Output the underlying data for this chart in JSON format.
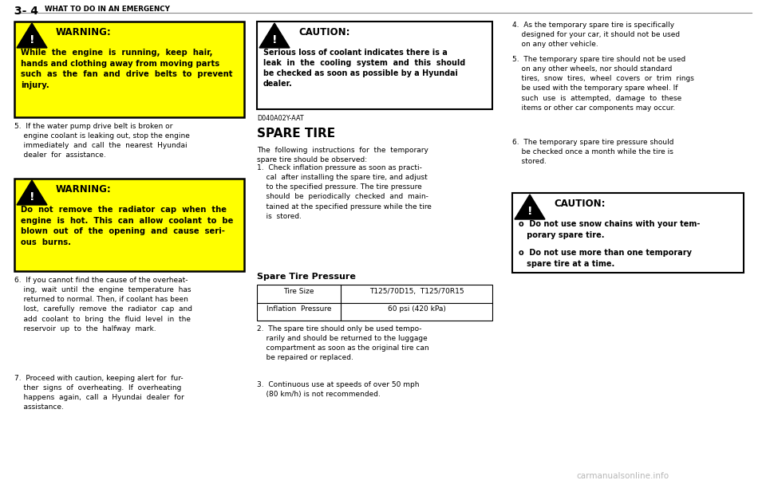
{
  "bg_color": "#ffffff",
  "warning_bg": "#ffff00",
  "page_header_bold": "3- 4",
  "page_header_normal": "WHAT TO DO IN AN EMERGENCY",
  "col1_w1_title": "WARNING:",
  "col1_w1_body": "While  the  engine  is  running,  keep  hair,\nhands and clothing away from moving parts\nsuch  as  the  fan  and  drive  belts  to  prevent\ninjury.",
  "col1_item5": "5.  If the water pump drive belt is broken or\n    engine coolant is leaking out, stop the engine\n    immediately  and  call  the  nearest  Hyundai\n    dealer  for  assistance.",
  "col1_w2_title": "WARNING:",
  "col1_w2_body": "Do  not  remove  the  radiator  cap  when  the\nengine  is  hot.  This  can  allow  coolant  to  be\nblown  out  of  the  opening  and  cause  seri-\nous  burns.",
  "col1_item6": "6.  If you cannot find the cause of the overheat-\n    ing,  wait  until  the  engine  temperature  has\n    returned to normal. Then, if coolant has been\n    lost,  carefully  remove  the  radiator  cap  and\n    add  coolant  to  bring  the  fluid  level  in  the\n    reservoir  up  to  the  halfway  mark.",
  "col1_item7": "7.  Proceed with caution, keeping alert for  fur-\n    ther  signs  of  overheating.  If  overheating\n    happens  again,  call  a  Hyundai  dealer  for\n    assistance.",
  "col2_caut_title": "CAUTION:",
  "col2_caut_body": "Serious loss of coolant indicates there is a\nleak  in  the  cooling  system  and  this  should\nbe checked as soon as possible by a Hyundai\ndealer.",
  "col2_label": "D040A02Y-AAT",
  "col2_section": "SPARE TIRE",
  "col2_intro": "The  following  instructions  for  the  temporary\nspare tire should be observed:",
  "col2_item1": "1.  Check inflation pressure as soon as practi-\n    cal  after installing the spare tire, and adjust\n    to the specified pressure. The tire pressure\n    should  be  periodically  checked  and  main-\n    tained at the specified pressure while the tire\n    is  stored.",
  "col2_spare_title": "Spare Tire Pressure",
  "tbl_h1": "Tire Size",
  "tbl_h2": "T125/70D15,  T125/70R15",
  "tbl_r1": "Inflation  Pressure",
  "tbl_r2": "60 psi (420 kPa)",
  "col2_item2": "2.  The spare tire should only be used tempo-\n    rarily and should be returned to the luggage\n    compartment as soon as the original tire can\n    be repaired or replaced.",
  "col2_item3": "3.  Continuous use at speeds of over 50 mph\n    (80 km/h) is not recommended.",
  "col3_item4": "4.  As the temporary spare tire is specifically\n    designed for your car, it should not be used\n    on any other vehicle.",
  "col3_item5": "5.  The temporary spare tire should not be used\n    on any other wheels, nor should standard\n    tires,  snow  tires,  wheel  covers  or  trim  rings\n    be used with the temporary spare wheel. If\n    such  use  is  attempted,  damage  to  these\n    items or other car components may occur.",
  "col3_item6": "6.  The temporary spare tire pressure should\n    be checked once a month while the tire is\n    stored.",
  "col3_caut_title": "CAUTION:",
  "col3_caut_b1": "o  Do not use snow chains with your tem-\n   porary spare tire.",
  "col3_caut_b2": "o  Do not use more than one temporary\n   spare tire at a time.",
  "watermark": "carmanualsonline.info"
}
